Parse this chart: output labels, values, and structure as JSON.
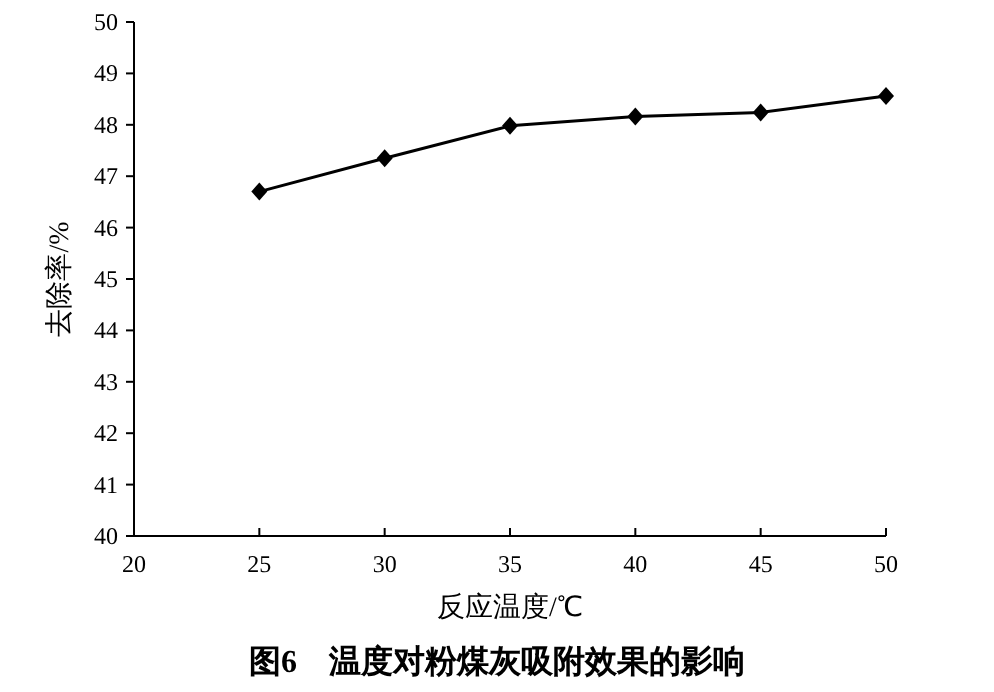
{
  "chart_data": {
    "type": "line",
    "title": "图6　温度对粉煤灰吸附效果的影响",
    "xlabel": "反应温度/℃",
    "ylabel": "去除率/%",
    "x": [
      25,
      30,
      35,
      40,
      45,
      50
    ],
    "series": [
      {
        "color": "#000000",
        "values": [
          46.7,
          47.35,
          47.98,
          48.16,
          48.24,
          48.56
        ]
      }
    ],
    "xlim": [
      20,
      50
    ],
    "xticks": [
      20,
      25,
      30,
      35,
      40,
      45,
      50
    ],
    "ylim": [
      40,
      50
    ],
    "yticks": [
      40,
      41,
      42,
      43,
      44,
      45,
      46,
      47,
      48,
      49,
      50
    ],
    "marker": "diamond",
    "line_style": "solid",
    "grid": false
  }
}
